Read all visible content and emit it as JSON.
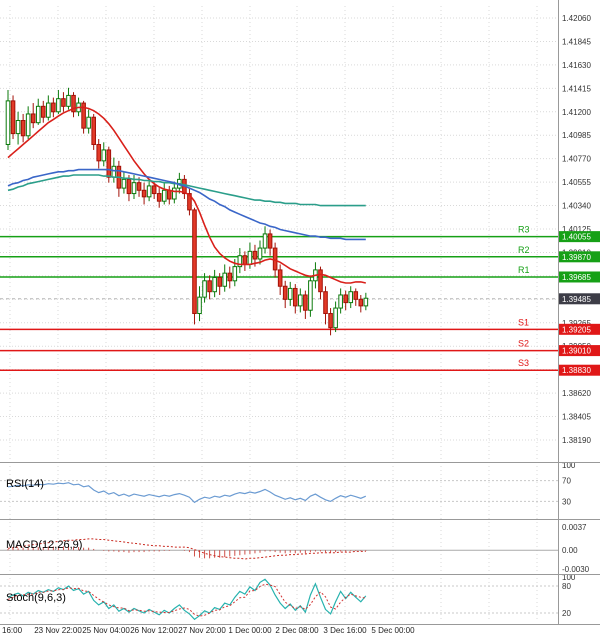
{
  "colors": {
    "background": "#ffffff",
    "grid": "#d9d9d9",
    "axis_text": "#333333",
    "time_text": "#222222",
    "panel_border": "#999999",
    "candle_up_fill": "#ffffff",
    "candle_up_stroke": "#0b7a0b",
    "candle_down_fill": "#e23a28",
    "candle_down_stroke": "#a31108",
    "resistance": "#16a016",
    "support": "#e01717",
    "current_tag_bg": "#3d3d47",
    "tag_text": "#ffffff",
    "current_line": "#b5b5b5",
    "level_dash": "#c8c8c8",
    "rsi_line": "#6b9bd2",
    "macd_histogram": "#cf5049",
    "macd_signal": "#c92a20",
    "stoch_k": "#27b2ae",
    "stoch_d": "#d23535"
  },
  "chart_data": {
    "type": "candlestick",
    "price_axis": {
      "ticks": [
        "1.42060",
        "1.41845",
        "1.41630",
        "1.41415",
        "1.41200",
        "1.40985",
        "1.40770",
        "1.40555",
        "1.40340",
        "1.40125",
        "1.39910",
        "1.39695",
        "1.39480",
        "1.39265",
        "1.39050",
        "1.38835",
        "1.38620",
        "1.38405",
        "1.38190"
      ],
      "tags": [
        {
          "text": "1.40055",
          "price": 1.40055,
          "type": "resistance"
        },
        {
          "text": "1.39870",
          "price": 1.3987,
          "type": "resistance"
        },
        {
          "text": "1.39685",
          "price": 1.39685,
          "type": "resistance"
        },
        {
          "text": "1.39485",
          "price": 1.39485,
          "type": "current"
        },
        {
          "text": "1.39205",
          "price": 1.39205,
          "type": "support"
        },
        {
          "text": "1.39010",
          "price": 1.3901,
          "type": "support"
        },
        {
          "text": "1.38830",
          "price": 1.3883,
          "type": "support"
        }
      ]
    },
    "time_axis": {
      "labels": [
        "16:00",
        "23 Nov 22:00",
        "25 Nov 04:00",
        "26 Nov 12:00",
        "27 Nov 20:00",
        "1 Dec 00:00",
        "2 Dec 08:00",
        "3 Dec 16:00",
        "5 Dec 00:00"
      ]
    },
    "levels": {
      "resistance": [
        {
          "name": "R3",
          "price": 1.40055
        },
        {
          "name": "R2",
          "price": 1.3987
        },
        {
          "name": "R1",
          "price": 1.39685
        }
      ],
      "support": [
        {
          "name": "S1",
          "price": 1.39205
        },
        {
          "name": "S2",
          "price": 1.3901
        },
        {
          "name": "S3",
          "price": 1.3883
        }
      ]
    },
    "current_price": 1.39485,
    "candles": [
      [
        1.409,
        1.414,
        1.4085,
        1.413
      ],
      [
        1.413,
        1.4135,
        1.4095,
        1.41
      ],
      [
        1.41,
        1.412,
        1.409,
        1.4112
      ],
      [
        1.4112,
        1.4118,
        1.4092,
        1.4098
      ],
      [
        1.4098,
        1.4125,
        1.4095,
        1.4118
      ],
      [
        1.4118,
        1.4128,
        1.4105,
        1.411
      ],
      [
        1.411,
        1.4132,
        1.4108,
        1.4125
      ],
      [
        1.4125,
        1.413,
        1.411,
        1.4115
      ],
      [
        1.4115,
        1.4135,
        1.4112,
        1.4128
      ],
      [
        1.4128,
        1.4133,
        1.4115,
        1.412
      ],
      [
        1.412,
        1.414,
        1.4118,
        1.4132
      ],
      [
        1.4132,
        1.4138,
        1.412,
        1.4125
      ],
      [
        1.4125,
        1.4142,
        1.4122,
        1.4135
      ],
      [
        1.4135,
        1.4138,
        1.4115,
        1.412
      ],
      [
        1.412,
        1.4133,
        1.4116,
        1.4128
      ],
      [
        1.4128,
        1.413,
        1.41,
        1.4105
      ],
      [
        1.4105,
        1.4122,
        1.41,
        1.4115
      ],
      [
        1.4115,
        1.4118,
        1.4085,
        1.409
      ],
      [
        1.409,
        1.4095,
        1.4068,
        1.4075
      ],
      [
        1.4075,
        1.4092,
        1.407,
        1.4085
      ],
      [
        1.4085,
        1.4088,
        1.4055,
        1.406
      ],
      [
        1.406,
        1.4078,
        1.4055,
        1.407
      ],
      [
        1.407,
        1.4075,
        1.4042,
        1.405
      ],
      [
        1.405,
        1.4065,
        1.4045,
        1.4058
      ],
      [
        1.4058,
        1.4062,
        1.4038,
        1.4045
      ],
      [
        1.4045,
        1.4062,
        1.404,
        1.4055
      ],
      [
        1.4055,
        1.406,
        1.4042,
        1.4048
      ],
      [
        1.4048,
        1.4055,
        1.4035,
        1.4042
      ],
      [
        1.4042,
        1.4058,
        1.4038,
        1.4052
      ],
      [
        1.4052,
        1.4056,
        1.404,
        1.4045
      ],
      [
        1.4045,
        1.405,
        1.4032,
        1.4038
      ],
      [
        1.4038,
        1.4055,
        1.4035,
        1.4048
      ],
      [
        1.4048,
        1.4052,
        1.4035,
        1.404
      ],
      [
        1.404,
        1.4056,
        1.4036,
        1.405
      ],
      [
        1.405,
        1.4064,
        1.4045,
        1.4058
      ],
      [
        1.4058,
        1.4062,
        1.404,
        1.4045
      ],
      [
        1.4045,
        1.405,
        1.4025,
        1.403
      ],
      [
        1.403,
        1.4032,
        1.3925,
        1.3935
      ],
      [
        1.3935,
        1.396,
        1.3928,
        1.395
      ],
      [
        1.395,
        1.3972,
        1.3945,
        1.3965
      ],
      [
        1.3965,
        1.397,
        1.3948,
        1.3955
      ],
      [
        1.3955,
        1.3975,
        1.395,
        1.3968
      ],
      [
        1.3968,
        1.3972,
        1.3952,
        1.396
      ],
      [
        1.396,
        1.398,
        1.3955,
        1.3972
      ],
      [
        1.3972,
        1.3978,
        1.3958,
        1.3965
      ],
      [
        1.3965,
        1.3985,
        1.396,
        1.3978
      ],
      [
        1.3978,
        1.3995,
        1.3972,
        1.3988
      ],
      [
        1.3988,
        1.3992,
        1.3974,
        1.398
      ],
      [
        1.398,
        1.4,
        1.3976,
        1.3992
      ],
      [
        1.3992,
        1.3998,
        1.3978,
        1.3985
      ],
      [
        1.3985,
        1.4002,
        1.398,
        1.3995
      ],
      [
        1.3995,
        1.4015,
        1.399,
        1.4008
      ],
      [
        1.4008,
        1.4012,
        1.3988,
        1.3995
      ],
      [
        1.3995,
        1.4,
        1.3968,
        1.3975
      ],
      [
        1.3975,
        1.398,
        1.3952,
        1.396
      ],
      [
        1.396,
        1.3965,
        1.394,
        1.3948
      ],
      [
        1.3948,
        1.3964,
        1.3942,
        1.3958
      ],
      [
        1.3958,
        1.3962,
        1.3935,
        1.3942
      ],
      [
        1.3942,
        1.3958,
        1.3936,
        1.3952
      ],
      [
        1.3952,
        1.3956,
        1.393,
        1.3938
      ],
      [
        1.3938,
        1.397,
        1.3932,
        1.3965
      ],
      [
        1.3965,
        1.3982,
        1.3958,
        1.3975
      ],
      [
        1.3975,
        1.3978,
        1.3948,
        1.3955
      ],
      [
        1.3955,
        1.396,
        1.3925,
        1.3935
      ],
      [
        1.3935,
        1.394,
        1.3915,
        1.3922
      ],
      [
        1.3922,
        1.3946,
        1.3918,
        1.394
      ],
      [
        1.394,
        1.3958,
        1.3935,
        1.3952
      ],
      [
        1.3952,
        1.3956,
        1.3938,
        1.3945
      ],
      [
        1.3945,
        1.396,
        1.394,
        1.3955
      ],
      [
        1.3955,
        1.3958,
        1.3942,
        1.3948
      ],
      [
        1.3948,
        1.3952,
        1.3936,
        1.3942
      ],
      [
        1.3942,
        1.3954,
        1.3938,
        1.3949
      ]
    ],
    "moving_averages": [
      {
        "name": "ma-fast-red",
        "color": "#d9201a",
        "values": [
          1.4078,
          1.4082,
          1.4086,
          1.409,
          1.4094,
          1.4098,
          1.4102,
          1.4106,
          1.411,
          1.4113,
          1.4116,
          1.4119,
          1.4121,
          1.4123,
          1.4124,
          1.4124,
          1.4123,
          1.4121,
          1.4118,
          1.4114,
          1.4109,
          1.4103,
          1.4096,
          1.4089,
          1.4082,
          1.4075,
          1.4069,
          1.4063,
          1.4058,
          1.4054,
          1.4051,
          1.4049,
          1.4048,
          1.4047,
          1.4047,
          1.4046,
          1.4044,
          1.4038,
          1.4028,
          1.4016,
          1.4005,
          1.3996,
          1.399,
          1.3986,
          1.3983,
          1.3981,
          1.398,
          1.398,
          1.398,
          1.3981,
          1.3982,
          1.3984,
          1.3985,
          1.3984,
          1.3982,
          1.3979,
          1.3976,
          1.3974,
          1.3972,
          1.397,
          1.3969,
          1.397,
          1.3971,
          1.397,
          1.3968,
          1.3966,
          1.3964,
          1.3963,
          1.3963,
          1.3964,
          1.3964,
          1.3963
        ]
      },
      {
        "name": "ma-medium-teal",
        "color": "#2b9e8a",
        "values": [
          1.4048,
          1.4049,
          1.4051,
          1.4052,
          1.4054,
          1.4055,
          1.4056,
          1.4057,
          1.4058,
          1.4059,
          1.406,
          1.4061,
          1.4061,
          1.4062,
          1.4062,
          1.4062,
          1.4062,
          1.4062,
          1.4062,
          1.4061,
          1.4061,
          1.406,
          1.406,
          1.4059,
          1.4059,
          1.4058,
          1.4058,
          1.4057,
          1.4057,
          1.4056,
          1.4056,
          1.4055,
          1.4055,
          1.4054,
          1.4054,
          1.4053,
          1.4052,
          1.4051,
          1.405,
          1.4049,
          1.4048,
          1.4047,
          1.4046,
          1.4045,
          1.4044,
          1.4043,
          1.4042,
          1.4041,
          1.404,
          1.4039,
          1.4039,
          1.4038,
          1.4038,
          1.4037,
          1.4037,
          1.4036,
          1.4036,
          1.4036,
          1.4035,
          1.4035,
          1.4035,
          1.4035,
          1.4034,
          1.4034,
          1.4034,
          1.4034,
          1.4034,
          1.4034,
          1.4034,
          1.4034,
          1.4034,
          1.4034
        ]
      },
      {
        "name": "ma-slow-blue",
        "color": "#3a66c8",
        "values": [
          1.4052,
          1.4054,
          1.4055,
          1.4057,
          1.4058,
          1.406,
          1.4061,
          1.4062,
          1.4063,
          1.4064,
          1.4065,
          1.4065,
          1.4066,
          1.4066,
          1.4067,
          1.4067,
          1.4067,
          1.4067,
          1.4067,
          1.4067,
          1.4067,
          1.4066,
          1.4066,
          1.4065,
          1.4064,
          1.4063,
          1.4062,
          1.4061,
          1.406,
          1.4059,
          1.4058,
          1.4057,
          1.4056,
          1.4055,
          1.4053,
          1.4052,
          1.405,
          1.4048,
          1.4046,
          1.4043,
          1.404,
          1.4038,
          1.4035,
          1.4033,
          1.403,
          1.4028,
          1.4026,
          1.4024,
          1.4022,
          1.402,
          1.4018,
          1.4017,
          1.4015,
          1.4014,
          1.4012,
          1.4011,
          1.401,
          1.4009,
          1.4008,
          1.4007,
          1.4006,
          1.4006,
          1.4005,
          1.4005,
          1.4004,
          1.4004,
          1.4004,
          1.4003,
          1.4003,
          1.4003,
          1.4003,
          1.4003
        ]
      }
    ],
    "indicators": {
      "rsi": {
        "label": "RSI(14)",
        "range": [
          0,
          100
        ],
        "levels": [
          70,
          30
        ],
        "axis_marks": [
          {
            "value": 100,
            "label": "100"
          },
          {
            "value": 70,
            "label": "70"
          },
          {
            "value": 30,
            "label": "30"
          }
        ],
        "values": [
          58,
          59,
          61,
          60,
          62,
          61,
          63,
          62,
          64,
          63,
          65,
          64,
          66,
          62,
          63,
          58,
          60,
          52,
          47,
          50,
          44,
          47,
          41,
          44,
          40,
          44,
          42,
          40,
          43,
          41,
          39,
          42,
          40,
          43,
          45,
          42,
          38,
          28,
          34,
          38,
          36,
          40,
          38,
          42,
          40,
          44,
          47,
          45,
          48,
          46,
          49,
          53,
          48,
          42,
          38,
          34,
          37,
          33,
          36,
          32,
          40,
          44,
          38,
          33,
          30,
          36,
          41,
          38,
          42,
          39,
          36,
          40
        ]
      },
      "macd": {
        "label": "MACD(12,26,9)",
        "scale_max": 0.0037,
        "scale_min": -0.003,
        "axis_marks": [
          {
            "value": 0.0037,
            "label": "0.0037"
          },
          {
            "value": 0,
            "label": "0.00"
          },
          {
            "value": -0.003,
            "label": "-0.0030"
          }
        ],
        "histogram": [
          0.0002,
          0.0003,
          0.0003,
          0.0004,
          0.0004,
          0.0005,
          0.0005,
          0.0005,
          0.0006,
          0.0006,
          0.0006,
          0.0006,
          0.0006,
          0.0005,
          0.0005,
          0.0004,
          0.0004,
          0.0002,
          0.0,
          -0.0001,
          -0.0002,
          -0.0002,
          -0.0003,
          -0.0003,
          -0.0004,
          -0.0003,
          -0.0003,
          -0.0003,
          -0.0002,
          -0.0002,
          -0.0002,
          -0.0001,
          -0.0001,
          0.0,
          0.0,
          -0.0001,
          -0.0003,
          -0.001,
          -0.0012,
          -0.0013,
          -0.0013,
          -0.0012,
          -0.0012,
          -0.0011,
          -0.001,
          -0.0009,
          -0.0008,
          -0.0007,
          -0.0006,
          -0.0005,
          -0.0004,
          -0.0002,
          -0.0002,
          -0.0003,
          -0.0004,
          -0.0005,
          -0.0004,
          -0.0005,
          -0.0004,
          -0.0005,
          -0.0003,
          -0.0002,
          -0.0002,
          -0.0003,
          -0.0004,
          -0.0003,
          -0.0002,
          -0.0002,
          -0.0001,
          -0.0001,
          -0.0001,
          -0.0001
        ],
        "signal": [
          0.0003,
          0.0004,
          0.0005,
          0.0006,
          0.0008,
          0.0009,
          0.001,
          0.0011,
          0.0012,
          0.0013,
          0.0014,
          0.0015,
          0.0016,
          0.0016,
          0.0017,
          0.0017,
          0.0018,
          0.0018,
          0.0017,
          0.0017,
          0.0016,
          0.0015,
          0.0014,
          0.0013,
          0.0012,
          0.0011,
          0.001,
          0.0009,
          0.0008,
          0.0007,
          0.0007,
          0.0006,
          0.0006,
          0.0005,
          0.0005,
          0.0005,
          0.0004,
          0.0001,
          -0.0002,
          -0.0005,
          -0.0007,
          -0.0009,
          -0.001,
          -0.0011,
          -0.0012,
          -0.0013,
          -0.0013,
          -0.0014,
          -0.0013,
          -0.0013,
          -0.0012,
          -0.0011,
          -0.001,
          -0.0009,
          -0.0008,
          -0.0008,
          -0.0007,
          -0.0007,
          -0.0006,
          -0.0006,
          -0.0005,
          -0.0005,
          -0.0004,
          -0.0004,
          -0.0004,
          -0.0004,
          -0.0003,
          -0.0003,
          -0.0003,
          -0.0002,
          -0.0002,
          -0.0002
        ]
      },
      "stoch": {
        "label": "Stoch(9,6,3)",
        "range": [
          0,
          100
        ],
        "levels": [
          80,
          20
        ],
        "axis_marks": [
          {
            "value": 100,
            "label": "100"
          },
          {
            "value": 80,
            "label": "80"
          },
          {
            "value": 20,
            "label": "20"
          }
        ],
        "k": [
          55,
          60,
          64,
          58,
          66,
          62,
          70,
          66,
          72,
          68,
          76,
          72,
          80,
          70,
          74,
          62,
          68,
          48,
          38,
          45,
          30,
          38,
          24,
          30,
          22,
          30,
          25,
          20,
          28,
          22,
          16,
          26,
          20,
          30,
          38,
          26,
          18,
          6,
          14,
          25,
          20,
          32,
          28,
          42,
          38,
          55,
          68,
          62,
          78,
          70,
          88,
          95,
          82,
          60,
          42,
          30,
          40,
          26,
          36,
          22,
          60,
          85,
          55,
          28,
          18,
          45,
          68,
          52,
          66,
          55,
          45,
          58
        ],
        "d": [
          50,
          55,
          60,
          60,
          62,
          62,
          66,
          66,
          69,
          69,
          72,
          72,
          76,
          74,
          75,
          69,
          68,
          59,
          51,
          44,
          38,
          34,
          31,
          31,
          25,
          27,
          26,
          24,
          25,
          23,
          22,
          21,
          21,
          25,
          29,
          31,
          28,
          17,
          13,
          15,
          20,
          26,
          27,
          34,
          36,
          45,
          54,
          55,
          69,
          70,
          79,
          84,
          82,
          79,
          61,
          44,
          37,
          30,
          34,
          28,
          39,
          56,
          67,
          56,
          33,
          29,
          44,
          55,
          62,
          58,
          55,
          53
        ]
      }
    }
  }
}
